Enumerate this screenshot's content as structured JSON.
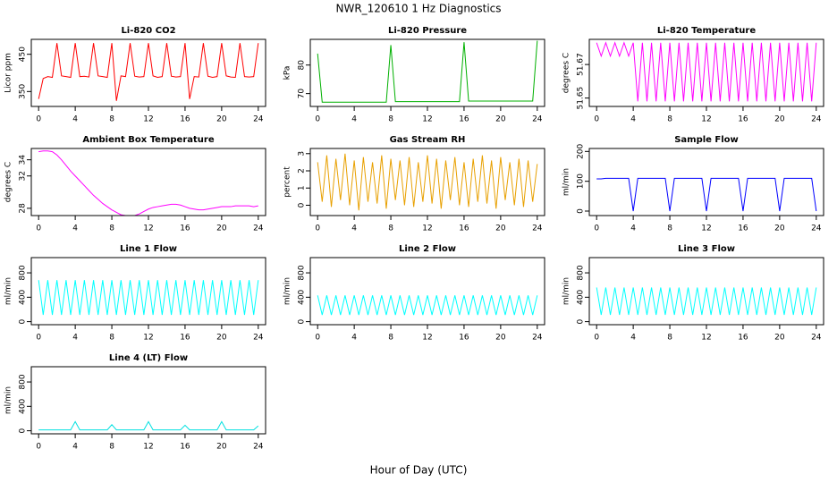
{
  "title": "NWR_120610  1 Hz Diagnostics",
  "xlabel": "Hour of Day (UTC)",
  "chart_data": [
    {
      "type": "line",
      "title": "Li-820 CO2",
      "ylabel": "Licor ppm",
      "color": "#ff0000",
      "xlim": [
        -0.8,
        24.8
      ],
      "xticks": [
        0,
        4,
        8,
        12,
        16,
        20,
        24
      ],
      "ylim": [
        310,
        490
      ],
      "yticks": [
        350,
        450
      ],
      "x": [
        0,
        0.5,
        1,
        1.5,
        2,
        2.5,
        3,
        3.5,
        4,
        4.5,
        5,
        5.5,
        6,
        6.5,
        7,
        7.5,
        8,
        8.5,
        9,
        9.5,
        10,
        10.5,
        11,
        11.5,
        12,
        12.5,
        13,
        13.5,
        14,
        14.5,
        15,
        15.5,
        16,
        16.5,
        17,
        17.5,
        18,
        18.5,
        19,
        19.5,
        20,
        20.5,
        21,
        21.5,
        22,
        22.5,
        23,
        23.5,
        24
      ],
      "values": [
        330,
        385,
        390,
        388,
        480,
        392,
        390,
        388,
        480,
        390,
        391,
        389,
        480,
        392,
        390,
        388,
        480,
        325,
        392,
        390,
        480,
        391,
        389,
        390,
        480,
        392,
        388,
        390,
        480,
        391,
        389,
        390,
        480,
        330,
        390,
        389,
        480,
        391,
        388,
        390,
        480,
        392,
        389,
        388,
        480,
        390,
        389,
        390,
        480
      ]
    },
    {
      "type": "line",
      "title": "Li-820 Pressure",
      "ylabel": "kPa",
      "color": "#00b000",
      "xlim": [
        -0.8,
        24.8
      ],
      "xticks": [
        0,
        4,
        8,
        12,
        16,
        20,
        24
      ],
      "ylim": [
        65.5,
        89
      ],
      "yticks": [
        70,
        80
      ],
      "x": [
        0,
        0.5,
        1,
        1.5,
        2,
        2.5,
        3,
        3.5,
        4,
        4.5,
        5,
        5.5,
        6,
        6.5,
        7,
        7.5,
        8,
        8.5,
        9,
        9.5,
        10,
        10.5,
        11,
        11.5,
        12,
        12.5,
        13,
        13.5,
        14,
        14.5,
        15,
        15.5,
        16,
        16.5,
        17,
        17.5,
        18,
        18.5,
        19,
        19.5,
        20,
        20.5,
        21,
        21.5,
        22,
        22.5,
        23,
        23.5,
        24
      ],
      "values": [
        84,
        67,
        67,
        67,
        67,
        67,
        67,
        67,
        67,
        67,
        67,
        67,
        67,
        67,
        67,
        67,
        87,
        67.2,
        67.2,
        67.2,
        67.2,
        67.2,
        67.2,
        67.2,
        67.2,
        67.2,
        67.2,
        67.2,
        67.2,
        67.2,
        67.2,
        67.2,
        88,
        67.4,
        67.4,
        67.4,
        67.4,
        67.4,
        67.4,
        67.4,
        67.4,
        67.4,
        67.4,
        67.4,
        67.4,
        67.4,
        67.4,
        67.4,
        88.5
      ]
    },
    {
      "type": "line",
      "title": "Li-820 Temperature",
      "ylabel": "degrees C",
      "color": "#ff00ff",
      "xlim": [
        -0.8,
        24.8
      ],
      "xticks": [
        0,
        4,
        8,
        12,
        16,
        20,
        24
      ],
      "ylim": [
        51.645,
        51.685
      ],
      "yticks": [
        51.65,
        51.67
      ],
      "x": [
        0,
        0.5,
        1,
        1.5,
        2,
        2.5,
        3,
        3.5,
        4,
        4.5,
        5,
        5.5,
        6,
        6.5,
        7,
        7.5,
        8,
        8.5,
        9,
        9.5,
        10,
        10.5,
        11,
        11.5,
        12,
        12.5,
        13,
        13.5,
        14,
        14.5,
        15,
        15.5,
        16,
        16.5,
        17,
        17.5,
        18,
        18.5,
        19,
        19.5,
        20,
        20.5,
        21,
        21.5,
        22,
        22.5,
        23,
        23.5,
        24
      ],
      "values": [
        51.683,
        51.675,
        51.683,
        51.675,
        51.683,
        51.675,
        51.683,
        51.675,
        51.683,
        51.648,
        51.683,
        51.648,
        51.683,
        51.648,
        51.683,
        51.648,
        51.683,
        51.648,
        51.683,
        51.648,
        51.683,
        51.648,
        51.683,
        51.648,
        51.683,
        51.648,
        51.683,
        51.648,
        51.683,
        51.648,
        51.683,
        51.648,
        51.683,
        51.648,
        51.683,
        51.648,
        51.683,
        51.648,
        51.683,
        51.648,
        51.683,
        51.648,
        51.683,
        51.648,
        51.683,
        51.648,
        51.683,
        51.648,
        51.683
      ]
    },
    {
      "type": "line",
      "title": "Ambient Box Temperature",
      "ylabel": "degrees C",
      "color": "#ff00ff",
      "xlim": [
        -0.8,
        24.8
      ],
      "xticks": [
        0,
        4,
        8,
        12,
        16,
        20,
        24
      ],
      "ylim": [
        27.1,
        35.4
      ],
      "yticks": [
        28,
        32,
        34
      ],
      "x": [
        0,
        0.5,
        1,
        1.5,
        2,
        2.5,
        3,
        3.5,
        4,
        4.5,
        5,
        5.5,
        6,
        6.5,
        7,
        7.5,
        8,
        8.5,
        9,
        9.5,
        10,
        10.5,
        11,
        11.5,
        12,
        12.5,
        13,
        13.5,
        14,
        14.5,
        15,
        15.5,
        16,
        16.5,
        17,
        17.5,
        18,
        18.5,
        19,
        19.5,
        20,
        20.5,
        21,
        21.5,
        22,
        22.5,
        23,
        23.5,
        24
      ],
      "values": [
        35,
        35.1,
        35.1,
        35,
        34.6,
        34,
        33.3,
        32.6,
        32,
        31.4,
        30.8,
        30.2,
        29.6,
        29.1,
        28.6,
        28.2,
        27.8,
        27.5,
        27.2,
        27.1,
        27,
        27.1,
        27.3,
        27.6,
        27.9,
        28.1,
        28.2,
        28.3,
        28.4,
        28.5,
        28.5,
        28.4,
        28.2,
        28,
        27.9,
        27.8,
        27.8,
        27.9,
        28,
        28.1,
        28.2,
        28.2,
        28.2,
        28.3,
        28.3,
        28.3,
        28.3,
        28.2,
        28.3
      ]
    },
    {
      "type": "line",
      "title": "Gas Stream RH",
      "ylabel": "percent",
      "color": "#e8a000",
      "xlim": [
        -0.8,
        24.8
      ],
      "xticks": [
        0,
        4,
        8,
        12,
        16,
        20,
        24
      ],
      "ylim": [
        -0.6,
        3.3
      ],
      "yticks": [
        0,
        1,
        2,
        3
      ],
      "x": [
        0,
        0.5,
        1,
        1.5,
        2,
        2.5,
        3,
        3.5,
        4,
        4.5,
        5,
        5.5,
        6,
        6.5,
        7,
        7.5,
        8,
        8.5,
        9,
        9.5,
        10,
        10.5,
        11,
        11.5,
        12,
        12.5,
        13,
        13.5,
        14,
        14.5,
        15,
        15.5,
        16,
        16.5,
        17,
        17.5,
        18,
        18.5,
        19,
        19.5,
        20,
        20.5,
        21,
        21.5,
        22,
        22.5,
        23,
        23.5,
        24
      ],
      "values": [
        2.5,
        0.2,
        2.9,
        -0.1,
        2.7,
        0.3,
        3.0,
        0,
        2.6,
        -0.3,
        2.8,
        0.2,
        2.5,
        0.1,
        2.9,
        -0.2,
        2.7,
        0.3,
        2.6,
        0,
        2.8,
        -0.1,
        2.5,
        0.2,
        2.9,
        0.1,
        2.7,
        -0.2,
        2.6,
        0.3,
        2.8,
        0,
        2.5,
        -0.1,
        2.7,
        0.2,
        2.9,
        0.1,
        2.6,
        -0.2,
        2.8,
        0.3,
        2.5,
        0,
        2.7,
        -0.1,
        2.6,
        0.2,
        2.4
      ]
    },
    {
      "type": "line",
      "title": "Sample Flow",
      "ylabel": "ml/min",
      "color": "#0000ff",
      "xlim": [
        -0.8,
        24.8
      ],
      "xticks": [
        0,
        4,
        8,
        12,
        16,
        20,
        24
      ],
      "ylim": [
        -15,
        210
      ],
      "yticks": [
        0,
        100,
        200
      ],
      "x": [
        0,
        0.5,
        1,
        1.5,
        2,
        2.5,
        3,
        3.5,
        4,
        4.5,
        5,
        5.5,
        6,
        6.5,
        7,
        7.5,
        8,
        8.5,
        9,
        9.5,
        10,
        10.5,
        11,
        11.5,
        12,
        12.5,
        13,
        13.5,
        14,
        14.5,
        15,
        15.5,
        16,
        16.5,
        17,
        17.5,
        18,
        18.5,
        19,
        19.5,
        20,
        20.5,
        21,
        21.5,
        22,
        22.5,
        23,
        23.5,
        24
      ],
      "values": [
        108,
        108,
        110,
        110,
        110,
        110,
        110,
        110,
        0,
        110,
        110,
        110,
        110,
        110,
        110,
        110,
        0,
        110,
        110,
        110,
        110,
        110,
        110,
        110,
        0,
        110,
        110,
        110,
        110,
        110,
        110,
        110,
        0,
        110,
        110,
        110,
        110,
        110,
        110,
        110,
        0,
        110,
        110,
        110,
        110,
        110,
        110,
        110,
        0
      ]
    },
    {
      "type": "line",
      "title": "Line 1 Flow",
      "ylabel": "ml/min",
      "color": "#00ffff",
      "xlim": [
        -0.8,
        24.8
      ],
      "xticks": [
        0,
        4,
        8,
        12,
        16,
        20,
        24
      ],
      "ylim": [
        -50,
        1050
      ],
      "yticks": [
        0,
        400,
        800
      ],
      "x": [
        0,
        0.5,
        1,
        1.5,
        2,
        2.5,
        3,
        3.5,
        4,
        4.5,
        5,
        5.5,
        6,
        6.5,
        7,
        7.5,
        8,
        8.5,
        9,
        9.5,
        10,
        10.5,
        11,
        11.5,
        12,
        12.5,
        13,
        13.5,
        14,
        14.5,
        15,
        15.5,
        16,
        16.5,
        17,
        17.5,
        18,
        18.5,
        19,
        19.5,
        20,
        20.5,
        21,
        21.5,
        22,
        22.5,
        23,
        23.5,
        24
      ],
      "values": [
        680,
        110,
        680,
        110,
        680,
        110,
        680,
        110,
        680,
        110,
        680,
        110,
        680,
        110,
        680,
        110,
        680,
        110,
        680,
        110,
        680,
        110,
        680,
        110,
        680,
        110,
        680,
        110,
        680,
        110,
        680,
        110,
        680,
        110,
        680,
        110,
        680,
        110,
        680,
        110,
        680,
        110,
        680,
        110,
        680,
        110,
        680,
        110,
        680
      ]
    },
    {
      "type": "line",
      "title": "Line 2 Flow",
      "ylabel": "ml/min",
      "color": "#00ffff",
      "xlim": [
        -0.8,
        24.8
      ],
      "xticks": [
        0,
        4,
        8,
        12,
        16,
        20,
        24
      ],
      "ylim": [
        -50,
        1050
      ],
      "yticks": [
        0,
        400,
        800
      ],
      "x": [
        0,
        0.5,
        1,
        1.5,
        2,
        2.5,
        3,
        3.5,
        4,
        4.5,
        5,
        5.5,
        6,
        6.5,
        7,
        7.5,
        8,
        8.5,
        9,
        9.5,
        10,
        10.5,
        11,
        11.5,
        12,
        12.5,
        13,
        13.5,
        14,
        14.5,
        15,
        15.5,
        16,
        16.5,
        17,
        17.5,
        18,
        18.5,
        19,
        19.5,
        20,
        20.5,
        21,
        21.5,
        22,
        22.5,
        23,
        23.5,
        24
      ],
      "values": [
        430,
        110,
        430,
        110,
        430,
        110,
        430,
        110,
        430,
        110,
        430,
        110,
        430,
        110,
        430,
        110,
        430,
        110,
        430,
        110,
        430,
        110,
        430,
        110,
        430,
        110,
        430,
        110,
        430,
        110,
        430,
        110,
        430,
        110,
        430,
        110,
        430,
        110,
        430,
        110,
        430,
        110,
        430,
        110,
        430,
        110,
        430,
        110,
        430
      ]
    },
    {
      "type": "line",
      "title": "Line 3 Flow",
      "ylabel": "ml/min",
      "color": "#00ffff",
      "xlim": [
        -0.8,
        24.8
      ],
      "xticks": [
        0,
        4,
        8,
        12,
        16,
        20,
        24
      ],
      "ylim": [
        -50,
        1050
      ],
      "yticks": [
        0,
        400,
        800
      ],
      "x": [
        0,
        0.5,
        1,
        1.5,
        2,
        2.5,
        3,
        3.5,
        4,
        4.5,
        5,
        5.5,
        6,
        6.5,
        7,
        7.5,
        8,
        8.5,
        9,
        9.5,
        10,
        10.5,
        11,
        11.5,
        12,
        12.5,
        13,
        13.5,
        14,
        14.5,
        15,
        15.5,
        16,
        16.5,
        17,
        17.5,
        18,
        18.5,
        19,
        19.5,
        20,
        20.5,
        21,
        21.5,
        22,
        22.5,
        23,
        23.5,
        24
      ],
      "values": [
        560,
        110,
        560,
        110,
        560,
        110,
        560,
        110,
        560,
        110,
        560,
        110,
        560,
        110,
        560,
        110,
        560,
        110,
        560,
        110,
        560,
        110,
        560,
        110,
        560,
        110,
        560,
        110,
        560,
        110,
        560,
        110,
        560,
        110,
        560,
        110,
        560,
        110,
        560,
        110,
        560,
        110,
        560,
        110,
        560,
        110,
        560,
        110,
        560
      ]
    },
    {
      "type": "line",
      "title": "Line 4 (LT) Flow",
      "ylabel": "ml/min",
      "color": "#00e0e0",
      "xlim": [
        -0.8,
        24.8
      ],
      "xticks": [
        0,
        4,
        8,
        12,
        16,
        20,
        24
      ],
      "ylim": [
        -50,
        1050
      ],
      "yticks": [
        0,
        400,
        800
      ],
      "x": [
        0,
        0.5,
        1,
        1.5,
        2,
        2.5,
        3,
        3.5,
        4,
        4.5,
        5,
        5.5,
        6,
        6.5,
        7,
        7.5,
        8,
        8.5,
        9,
        9.5,
        10,
        10.5,
        11,
        11.5,
        12,
        12.5,
        13,
        13.5,
        14,
        14.5,
        15,
        15.5,
        16,
        16.5,
        17,
        17.5,
        18,
        18.5,
        19,
        19.5,
        20,
        20.5,
        21,
        21.5,
        22,
        22.5,
        23,
        23.5,
        24
      ],
      "values": [
        15,
        15,
        15,
        15,
        15,
        15,
        15,
        15,
        150,
        15,
        15,
        15,
        15,
        15,
        15,
        15,
        100,
        15,
        15,
        15,
        15,
        15,
        15,
        15,
        150,
        15,
        15,
        15,
        15,
        15,
        15,
        15,
        90,
        15,
        15,
        15,
        15,
        15,
        15,
        15,
        150,
        15,
        15,
        15,
        15,
        15,
        15,
        15,
        80
      ]
    }
  ]
}
